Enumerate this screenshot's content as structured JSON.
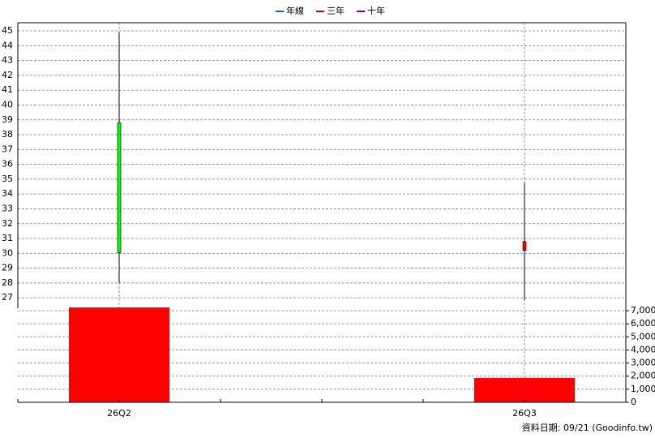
{
  "chart_data": {
    "type": "candlestick",
    "legend": [
      {
        "name": "年線",
        "color": "#1f5fd0"
      },
      {
        "name": "三年",
        "color": "#e00000"
      },
      {
        "name": "十年",
        "color": "#800080"
      }
    ],
    "categories": [
      "26Q2",
      "26Q3"
    ],
    "open": [
      38.8,
      30.2
    ],
    "high": [
      44.9,
      34.75
    ],
    "low": [
      28.0,
      26.85
    ],
    "close": [
      30.05,
      30.8
    ],
    "volume": [
      7250,
      1860
    ],
    "up_color": "#ff0000",
    "down_color": "#00ff00",
    "volume_color": "#ff0000",
    "ylim": [
      26.3,
      45.55
    ],
    "yticks": [
      27,
      28,
      29,
      30,
      31,
      32,
      33,
      34,
      35,
      36,
      37,
      38,
      39,
      40,
      41,
      42,
      43,
      44,
      45
    ],
    "y2lim": [
      0,
      7500
    ],
    "y2ticks": [
      0,
      {
        "value": 1000,
        "label": "1,000"
      },
      {
        "value": 2000,
        "label": "2,000"
      },
      {
        "value": 3000,
        "label": "3,000"
      },
      {
        "value": 4000,
        "label": "4,000"
      },
      {
        "value": 5000,
        "label": "5,000"
      },
      {
        "value": 6000,
        "label": "6,000"
      },
      {
        "value": 7000,
        "label": "7,000"
      }
    ],
    "grid": true,
    "source": "資料日期: 09/21  (Goodinfo.tw)"
  }
}
